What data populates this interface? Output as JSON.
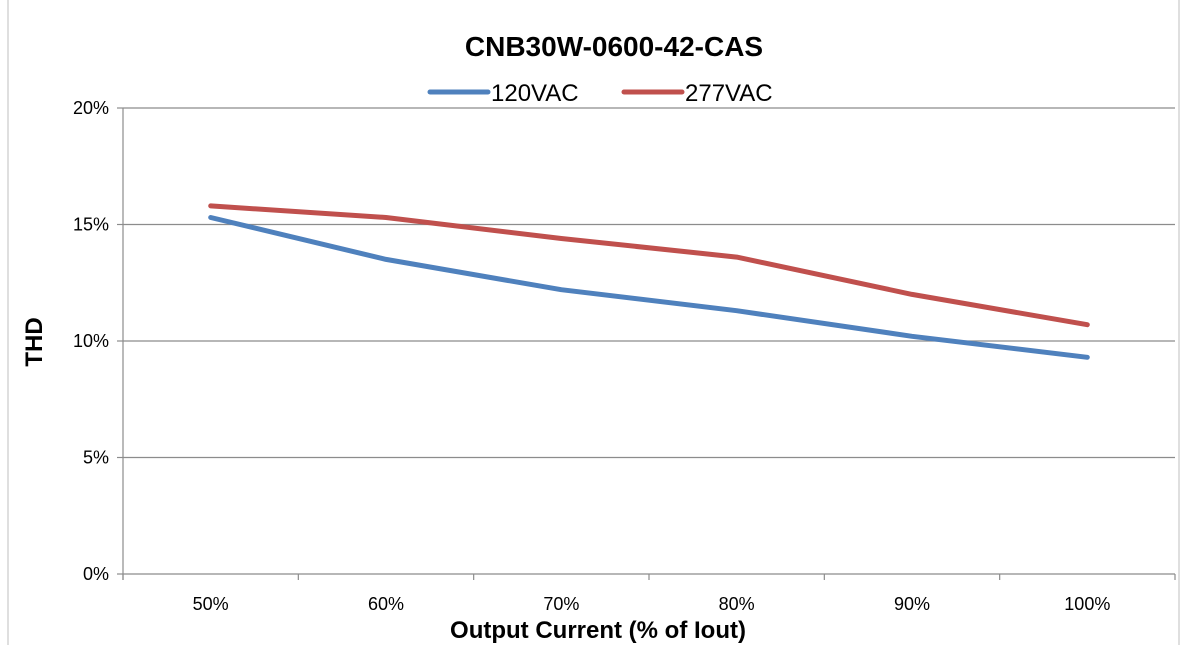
{
  "chart_data": {
    "type": "line",
    "title": "CNB30W-0600-42-CAS",
    "xlabel": "Output Current (% of Iout)",
    "ylabel": "THD",
    "categories": [
      "50%",
      "60%",
      "70%",
      "80%",
      "90%",
      "100%"
    ],
    "yticks": [
      "0%",
      "5%",
      "10%",
      "15%",
      "20%"
    ],
    "ylim": [
      0,
      20
    ],
    "ystep": 5,
    "grid": true,
    "legend_position": "top",
    "series": [
      {
        "name": "120VAC",
        "color": "#4f81bd",
        "values": [
          15.3,
          13.5,
          12.2,
          11.3,
          10.2,
          9.3
        ]
      },
      {
        "name": "277VAC",
        "color": "#c0504d",
        "values": [
          15.8,
          15.3,
          14.4,
          13.6,
          12.0,
          10.7
        ]
      }
    ]
  }
}
